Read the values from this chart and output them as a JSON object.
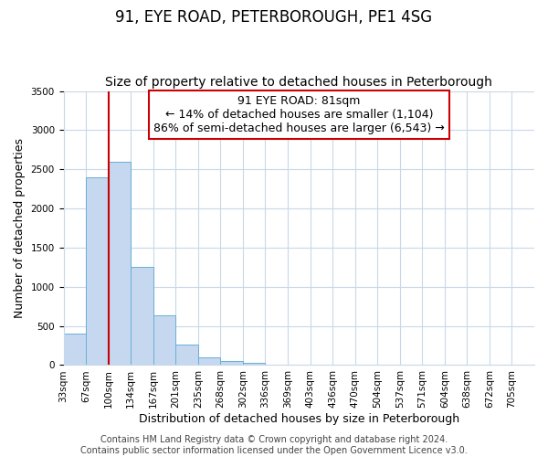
{
  "title": "91, EYE ROAD, PETERBOROUGH, PE1 4SG",
  "subtitle": "Size of property relative to detached houses in Peterborough",
  "xlabel": "Distribution of detached houses by size in Peterborough",
  "ylabel": "Number of detached properties",
  "footer_line1": "Contains HM Land Registry data © Crown copyright and database right 2024.",
  "footer_line2": "Contains public sector information licensed under the Open Government Licence v3.0.",
  "bar_labels": [
    "33sqm",
    "67sqm",
    "100sqm",
    "134sqm",
    "167sqm",
    "201sqm",
    "235sqm",
    "268sqm",
    "302sqm",
    "336sqm",
    "369sqm",
    "403sqm",
    "436sqm",
    "470sqm",
    "504sqm",
    "537sqm",
    "571sqm",
    "604sqm",
    "638sqm",
    "672sqm",
    "705sqm"
  ],
  "bar_values": [
    400,
    2400,
    2600,
    1250,
    630,
    260,
    100,
    50,
    25,
    0,
    0,
    0,
    0,
    0,
    0,
    0,
    0,
    0,
    0,
    0,
    0
  ],
  "bar_color": "#c5d8f0",
  "bar_edge_color": "#6aaed6",
  "vline_color": "#cc0000",
  "vline_x": 2.0,
  "annotation_line1": "91 EYE ROAD: 81sqm",
  "annotation_line2": "← 14% of detached houses are smaller (1,104)",
  "annotation_line3": "86% of semi-detached houses are larger (6,543) →",
  "annotation_box_color": "#ffffff",
  "annotation_box_edge_color": "#cc0000",
  "ylim": [
    0,
    3500
  ],
  "yticks": [
    0,
    500,
    1000,
    1500,
    2000,
    2500,
    3000,
    3500
  ],
  "background_color": "#ffffff",
  "grid_color": "#c8d8ea",
  "title_fontsize": 12,
  "subtitle_fontsize": 10,
  "axis_label_fontsize": 9,
  "tick_fontsize": 7.5,
  "annotation_fontsize": 9,
  "footer_fontsize": 7
}
